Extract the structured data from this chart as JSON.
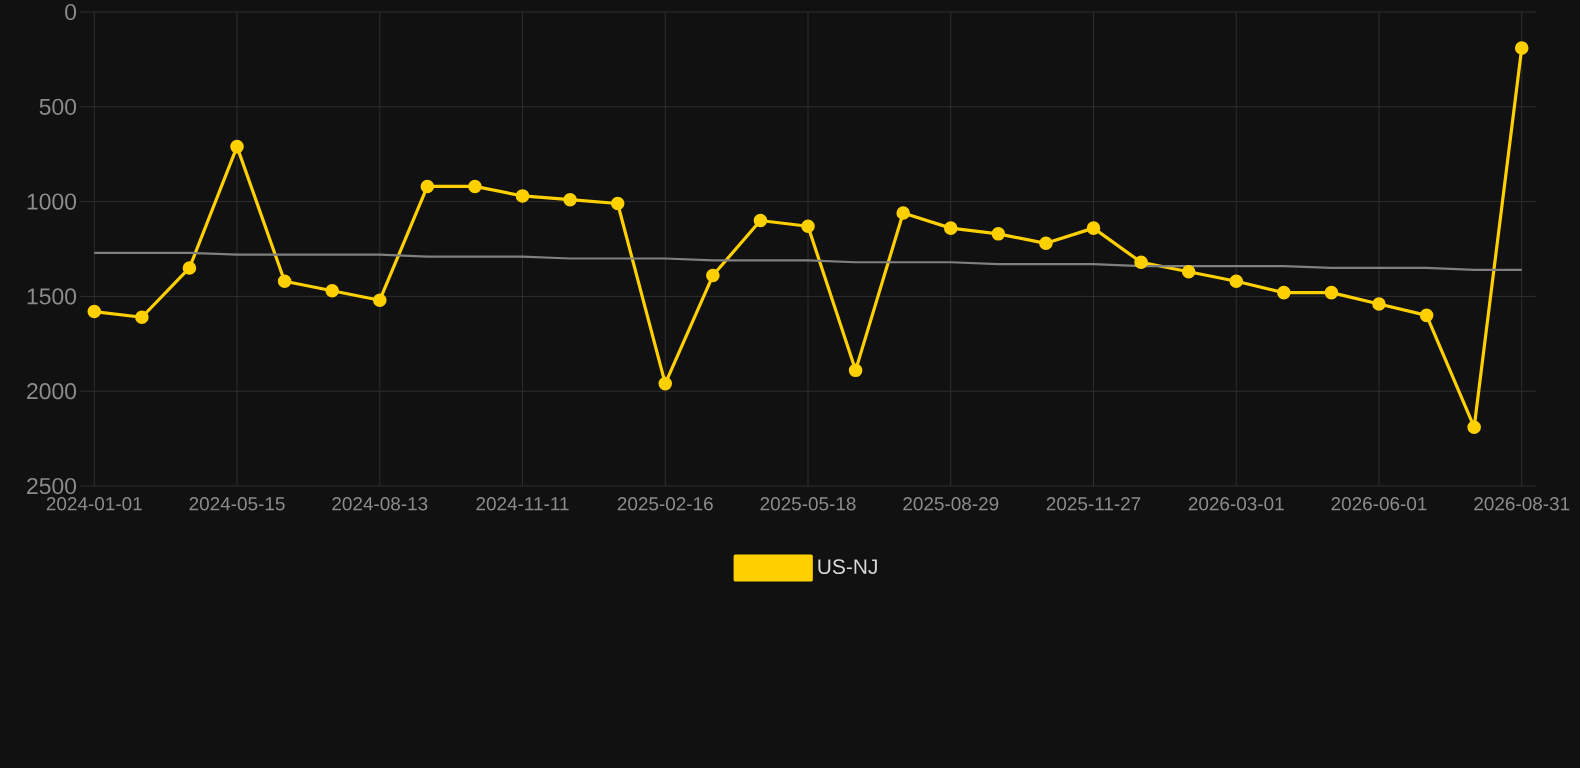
{
  "chart_data": {
    "type": "line",
    "categories": [
      "2024-01-01",
      null,
      null,
      "2024-05-15",
      null,
      null,
      "2024-08-13",
      null,
      null,
      "2024-11-11",
      null,
      null,
      "2025-02-16",
      null,
      null,
      "2025-05-18",
      null,
      null,
      "2025-08-29",
      null,
      null,
      "2025-11-27",
      null,
      null,
      "2026-03-01",
      null,
      null,
      "2026-06-01",
      null,
      null,
      "2026-08-31"
    ],
    "series": [
      {
        "name": "US-NJ",
        "color": "#ffd000",
        "marker": "circle",
        "values": [
          1580,
          1610,
          1350,
          710,
          1420,
          1470,
          1520,
          920,
          920,
          970,
          990,
          1010,
          1960,
          1390,
          1100,
          1130,
          1890,
          1060,
          1140,
          1170,
          1220,
          1140,
          1320,
          1370,
          1420,
          1480,
          1480,
          1540,
          1600,
          2190,
          190
        ]
      },
      {
        "type": "line",
        "color": "#808080",
        "marker": "none",
        "values": [
          1270,
          1270,
          1270,
          1280,
          1280,
          1280,
          1280,
          1290,
          1290,
          1290,
          1300,
          1300,
          1300,
          1310,
          1310,
          1310,
          1320,
          1320,
          1320,
          1330,
          1330,
          1330,
          1340,
          1340,
          1340,
          1340,
          1350,
          1350,
          1350,
          1360,
          1360
        ]
      }
    ],
    "ylim": [
      2500,
      0
    ],
    "yticks": [
      0,
      500,
      1000,
      1500,
      2000,
      2500
    ],
    "grid": true,
    "legend": "bottom",
    "line_style": "solid"
  }
}
